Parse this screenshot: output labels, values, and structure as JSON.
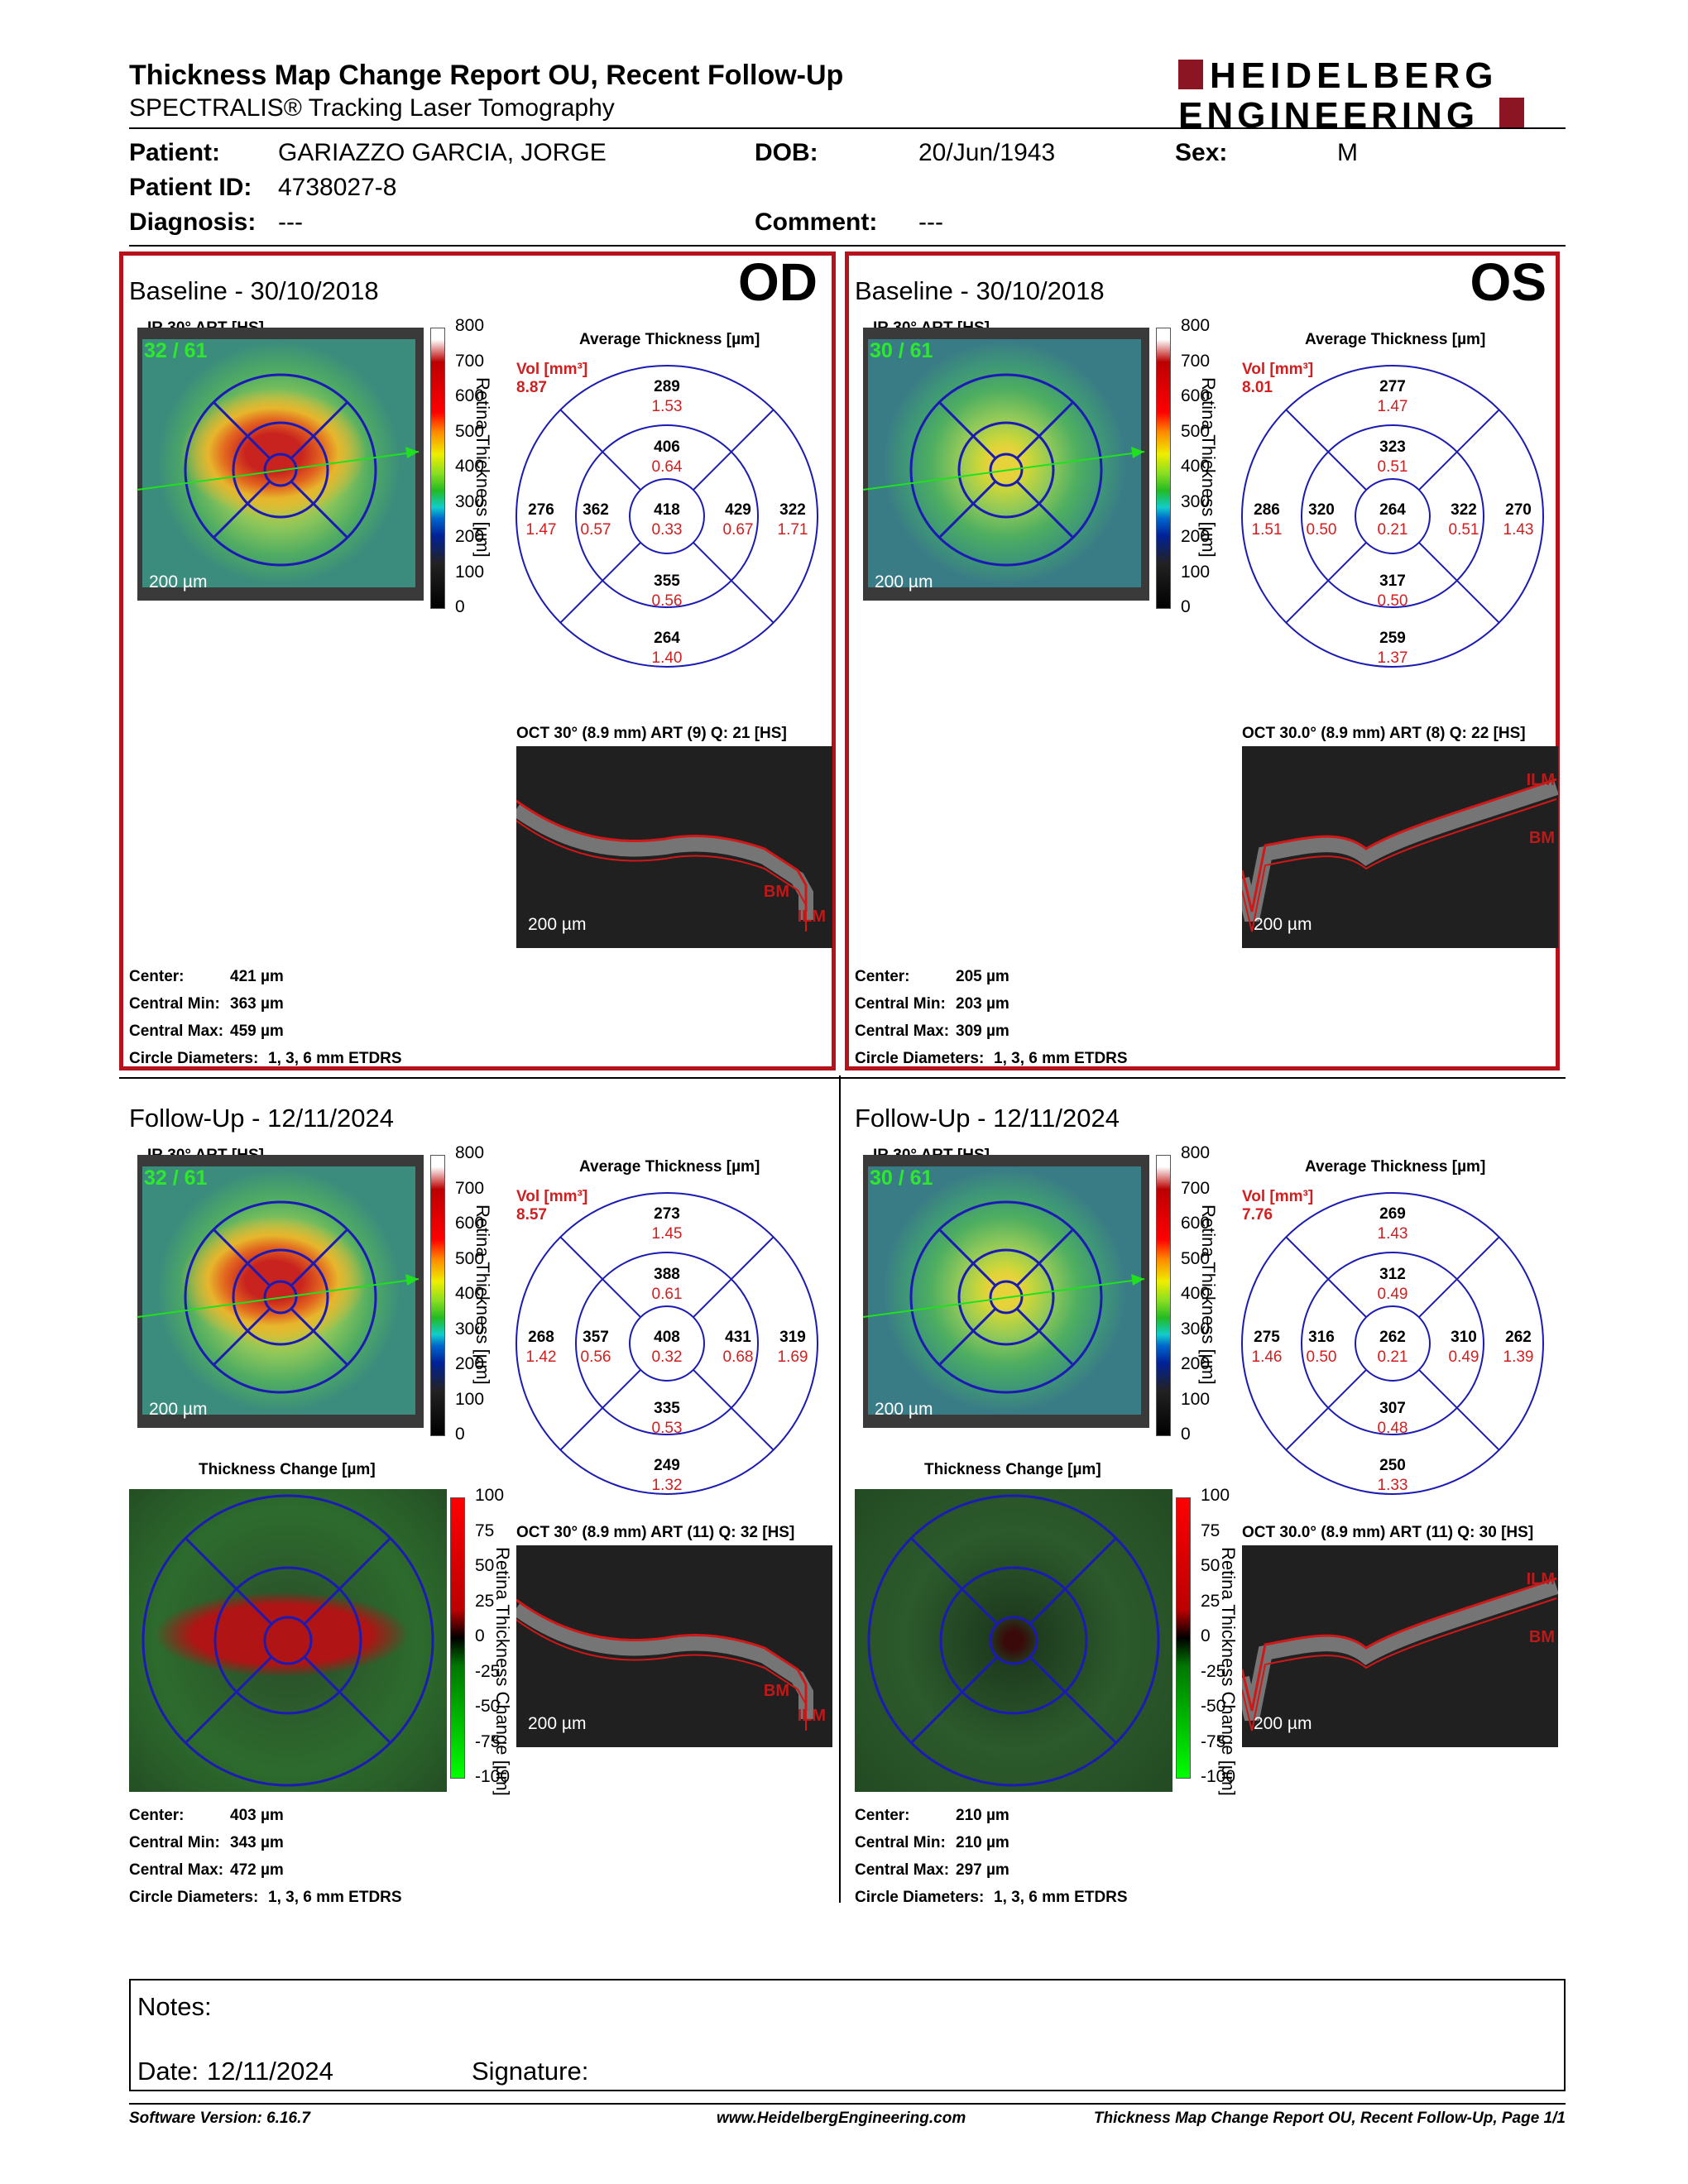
{
  "header": {
    "title": "Thickness Map Change Report OU, Recent Follow-Up",
    "subtitle": "SPECTRALIS® Tracking Laser Tomography",
    "logo_line1": "HEIDELBERG",
    "logo_line2": "ENGINEERING"
  },
  "patient": {
    "patient_label": "Patient:",
    "patient": "GARIAZZO GARCIA, JORGE",
    "dob_label": "DOB:",
    "dob": "20/Jun/1943",
    "sex_label": "Sex:",
    "sex": "M",
    "id_label": "Patient ID:",
    "id": "4738027-8",
    "diag_label": "Diagnosis:",
    "diagnosis": "---",
    "comment_label": "Comment:",
    "comment": "---"
  },
  "labels": {
    "avg": "Average Thickness [µm]",
    "vol": "Vol [mm³]",
    "retina": "Retina Thickness [µm]",
    "change": "Thickness Change [µm]",
    "retina_change": "Retina Thickness Change [µm]",
    "scale_bar": "200 µm",
    "center": "Center:",
    "cmin": "Central Min:",
    "cmax": "Central Max:",
    "circ": "Circle Diameters:",
    "circ_val": "1, 3, 6 mm ETDRS",
    "ilm": "ILM",
    "bm": "BM"
  },
  "scale_ticks": [
    "800",
    "700",
    "600",
    "500",
    "400",
    "300",
    "200",
    "100",
    "0"
  ],
  "change_ticks": [
    "100",
    "75",
    "50",
    "25",
    "0",
    "-25",
    "-50",
    "-75",
    "-100"
  ],
  "panels": {
    "od_base": {
      "eye": "OD",
      "title": "Baseline - 30/10/2018",
      "ir": "IR 30° ART [HS]",
      "frames": "32 / 61",
      "vol": "8.87",
      "oct": "OCT 30° (8.9 mm) ART (9) Q: 21 [HS]",
      "etdrs": {
        "center": [
          "418",
          "0.33"
        ],
        "in_s": [
          "406",
          "0.64"
        ],
        "in_n": [
          "429",
          "0.67"
        ],
        "in_i": [
          "355",
          "0.56"
        ],
        "in_t": [
          "362",
          "0.57"
        ],
        "out_s": [
          "289",
          "1.53"
        ],
        "out_n": [
          "322",
          "1.71"
        ],
        "out_i": [
          "264",
          "1.40"
        ],
        "out_t": [
          "276",
          "1.47"
        ]
      },
      "center": "421 µm",
      "cmin": "363 µm",
      "cmax": "459 µm"
    },
    "os_base": {
      "eye": "OS",
      "title": "Baseline - 30/10/2018",
      "ir": "IR 30° ART [HS]",
      "frames": "30 / 61",
      "vol": "8.01",
      "oct": "OCT 30.0° (8.9 mm) ART (8) Q: 22 [HS]",
      "etdrs": {
        "center": [
          "264",
          "0.21"
        ],
        "in_s": [
          "323",
          "0.51"
        ],
        "in_n": [
          "322",
          "0.51"
        ],
        "in_i": [
          "317",
          "0.50"
        ],
        "in_t": [
          "320",
          "0.50"
        ],
        "out_s": [
          "277",
          "1.47"
        ],
        "out_n": [
          "270",
          "1.43"
        ],
        "out_i": [
          "259",
          "1.37"
        ],
        "out_t": [
          "286",
          "1.51"
        ]
      },
      "center": "205 µm",
      "cmin": "203 µm",
      "cmax": "309 µm"
    },
    "od_fu": {
      "title": "Follow-Up - 12/11/2024",
      "ir": "IR 30° ART [HS]",
      "frames": "32 / 61",
      "vol": "8.57",
      "oct": "OCT 30° (8.9 mm) ART (11) Q: 32 [HS]",
      "etdrs": {
        "center": [
          "408",
          "0.32"
        ],
        "in_s": [
          "388",
          "0.61"
        ],
        "in_n": [
          "431",
          "0.68"
        ],
        "in_i": [
          "335",
          "0.53"
        ],
        "in_t": [
          "357",
          "0.56"
        ],
        "out_s": [
          "273",
          "1.45"
        ],
        "out_n": [
          "319",
          "1.69"
        ],
        "out_i": [
          "249",
          "1.32"
        ],
        "out_t": [
          "268",
          "1.42"
        ]
      },
      "center": "403 µm",
      "cmin": "343 µm",
      "cmax": "472 µm"
    },
    "os_fu": {
      "title": "Follow-Up - 12/11/2024",
      "ir": "IR 30° ART [HS]",
      "frames": "30 / 61",
      "vol": "7.76",
      "oct": "OCT 30.0° (8.9 mm) ART (11) Q: 30 [HS]",
      "etdrs": {
        "center": [
          "262",
          "0.21"
        ],
        "in_s": [
          "312",
          "0.49"
        ],
        "in_n": [
          "310",
          "0.49"
        ],
        "in_i": [
          "307",
          "0.48"
        ],
        "in_t": [
          "316",
          "0.50"
        ],
        "out_s": [
          "269",
          "1.43"
        ],
        "out_n": [
          "262",
          "1.39"
        ],
        "out_i": [
          "250",
          "1.33"
        ],
        "out_t": [
          "275",
          "1.46"
        ]
      },
      "center": "210 µm",
      "cmin": "210 µm",
      "cmax": "297 µm"
    }
  },
  "notes": {
    "notes_label": "Notes:",
    "date_label": "Date:",
    "date": "12/11/2024",
    "signature_label": "Signature:"
  },
  "footer": {
    "software": "Software Version: 6.16.7",
    "url": "www.HeidelbergEngineering.com",
    "page": "Thickness Map Change Report OU, Recent Follow-Up, Page 1/1"
  },
  "colors": {
    "frame_red": "#b5121b",
    "etdrs_blue": "#1b1bb4",
    "value_red": "#d21e1e"
  }
}
